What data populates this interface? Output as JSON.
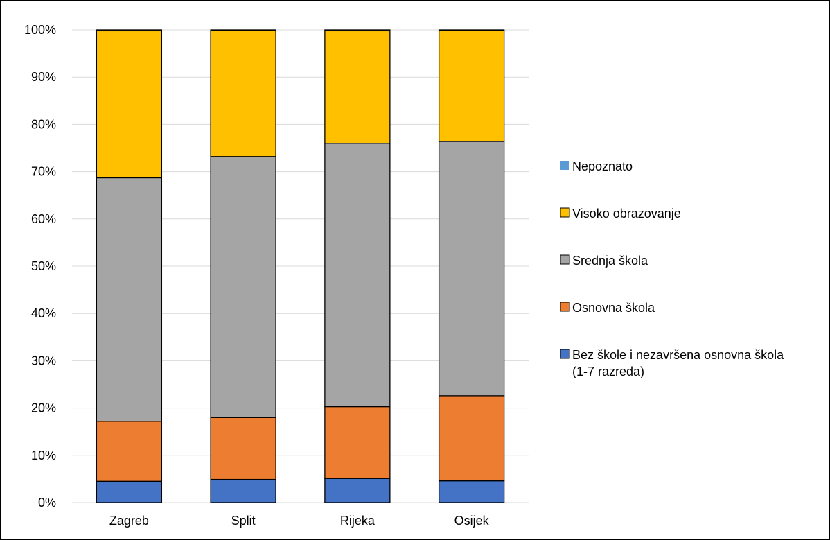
{
  "chart_data": {
    "type": "bar",
    "stacked": true,
    "percent_stacked": true,
    "categories": [
      "Zagreb",
      "Split",
      "Rijeka",
      "Osijek"
    ],
    "series": [
      {
        "name": "Bez škole i nezavršena osnovna škola (1-7 razreda)",
        "color": "#4472C4",
        "values": [
          4.5,
          4.9,
          5.1,
          4.6
        ]
      },
      {
        "name": "Osnovna škola",
        "color": "#ED7D31",
        "values": [
          12.7,
          13.1,
          15.2,
          18.0
        ]
      },
      {
        "name": "Srednja škola",
        "color": "#A5A5A5",
        "values": [
          51.5,
          55.2,
          55.7,
          53.8
        ]
      },
      {
        "name": "Visoko obrazovanje",
        "color": "#FFC000",
        "values": [
          31.1,
          26.7,
          23.8,
          23.5
        ]
      },
      {
        "name": "Nepoznato",
        "color": "#5B9BD5",
        "values": [
          0.2,
          0.1,
          0.2,
          0.1
        ]
      }
    ],
    "y_ticks": [
      "0%",
      "10%",
      "20%",
      "30%",
      "40%",
      "50%",
      "60%",
      "70%",
      "80%",
      "90%",
      "100%"
    ],
    "ylim": [
      0,
      100
    ],
    "grid": true,
    "legend_position": "right",
    "legend_lines": [
      [
        "Nepoznato"
      ],
      [
        "Visoko obrazovanje"
      ],
      [
        "Srednja škola"
      ],
      [
        "Osnovna škola"
      ],
      [
        "Bez škole i nezavršena osnovna škola",
        "(1-7 razreda)"
      ]
    ],
    "title": "",
    "xlabel": "",
    "ylabel": ""
  }
}
